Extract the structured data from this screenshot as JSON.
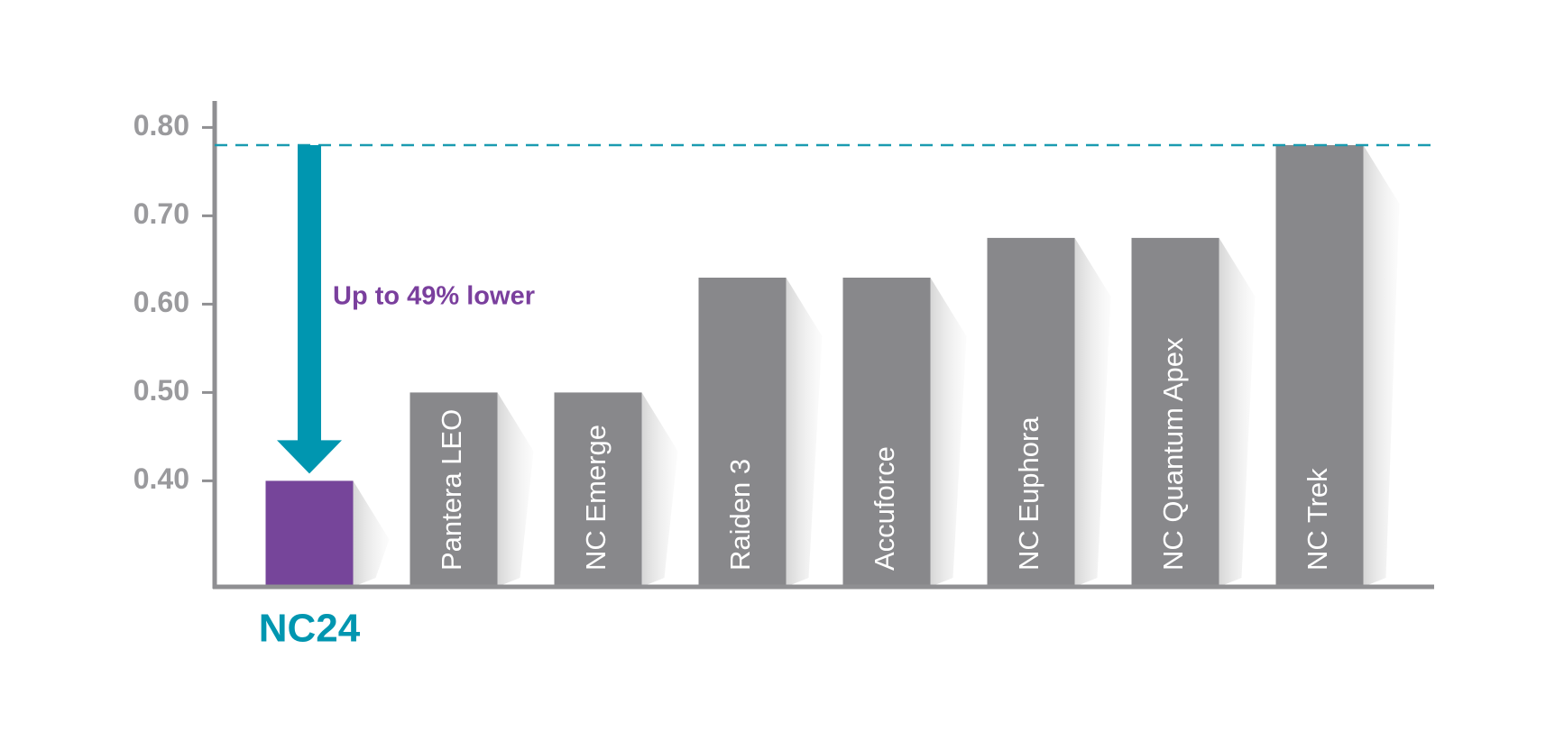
{
  "chart_data": {
    "type": "bar",
    "categories": [
      "NC24",
      "Pantera LEO",
      "NC Emerge",
      "Raiden 3",
      "Accuforce",
      "NC Euphora",
      "NC Quantum Apex",
      "NC Trek"
    ],
    "values": [
      0.4,
      0.5,
      0.5,
      0.63,
      0.63,
      0.675,
      0.675,
      0.78
    ],
    "colors": [
      "#76459a",
      "#88888b",
      "#88888b",
      "#88888b",
      "#88888b",
      "#88888b",
      "#88888b",
      "#88888b"
    ],
    "highlight_index": 0,
    "highlight_label_color": "#0096b0",
    "reference_line": 0.78,
    "reference_color": "#1a9bb0",
    "annotation": "Up to 49% lower",
    "annotation_color": "#7a3f9d",
    "ylim": [
      0.28,
      0.83
    ],
    "yticks": [
      {
        "value": 0.4,
        "label": "0.40"
      },
      {
        "value": 0.5,
        "label": "0.50"
      },
      {
        "value": 0.6,
        "label": "0.60"
      },
      {
        "value": 0.7,
        "label": "0.70"
      },
      {
        "value": 0.8,
        "label": "0.80"
      }
    ],
    "grid": false
  }
}
